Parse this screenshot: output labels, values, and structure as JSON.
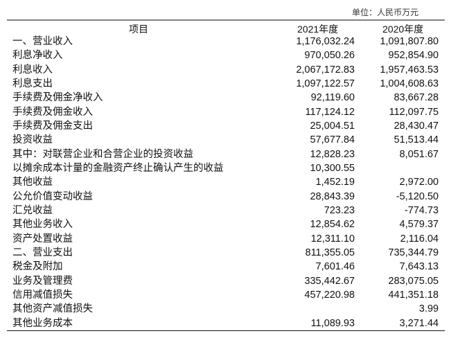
{
  "unit": "单位：人民币万元",
  "headers": {
    "item": "项目",
    "y2021": "2021年度",
    "y2020": "2020年度"
  },
  "rows": [
    {
      "label": "一、营业收入",
      "y2021": "1,176,032.24",
      "y2020": "1,091,807.80"
    },
    {
      "label": "利息净收入",
      "y2021": "970,050.26",
      "y2020": "952,854.90"
    },
    {
      "label": "利息收入",
      "y2021": "2,067,172.83",
      "y2020": "1,957,463.53"
    },
    {
      "label": "利息支出",
      "y2021": "1,097,122.57",
      "y2020": "1,004,608.63"
    },
    {
      "label": "手续费及佣金净收入",
      "y2021": "92,119.60",
      "y2020": "83,667.28"
    },
    {
      "label": "手续费及佣金收入",
      "y2021": "117,124.12",
      "y2020": "112,097.75"
    },
    {
      "label": "手续费及佣金支出",
      "y2021": "25,004.51",
      "y2020": "28,430.47"
    },
    {
      "label": "投资收益",
      "y2021": "57,677.84",
      "y2020": "51,513.44"
    },
    {
      "label": "其中：对联营企业和合营企业的投资收益",
      "y2021": "12,828.23",
      "y2020": "8,051.67"
    },
    {
      "label": "以摊余成本计量的金融资产终止确认产生的收益",
      "y2021": "10,300.55",
      "y2020": ""
    },
    {
      "label": "其他收益",
      "y2021": "1,452.19",
      "y2020": "2,972.00"
    },
    {
      "label": "公允价值变动收益",
      "y2021": "28,843.39",
      "y2020": "-5,120.50"
    },
    {
      "label": "汇兑收益",
      "y2021": "723.23",
      "y2020": "-774.73"
    },
    {
      "label": "其他业务收入",
      "y2021": "12,854.62",
      "y2020": "4,579.37"
    },
    {
      "label": "资产处置收益",
      "y2021": "12,311.10",
      "y2020": "2,116.04"
    },
    {
      "label": "二、营业支出",
      "y2021": "811,355.05",
      "y2020": "735,344.79"
    },
    {
      "label": "税金及附加",
      "y2021": "7,601.46",
      "y2020": "7,643.13"
    },
    {
      "label": "业务及管理费",
      "y2021": "335,442.67",
      "y2020": "283,075.05"
    },
    {
      "label": "信用减值损失",
      "y2021": "457,220.98",
      "y2020": "441,351.18"
    },
    {
      "label": "其他资产减值损失",
      "y2021": "",
      "y2020": "3.99"
    },
    {
      "label": "其他业务成本",
      "y2021": "11,089.93",
      "y2020": "3,271.44"
    }
  ]
}
